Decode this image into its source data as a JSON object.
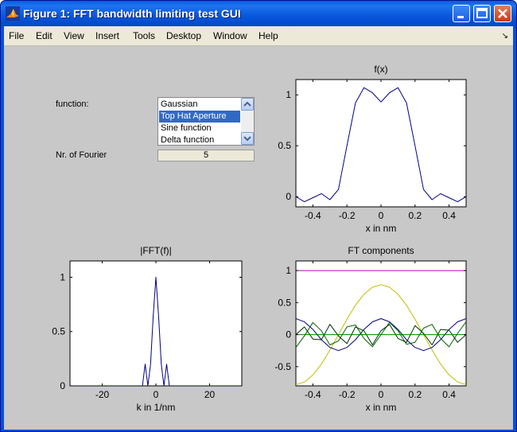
{
  "window": {
    "title": "Figure 1: FFT bandwidth limiting test GUI",
    "controls": [
      "minimize",
      "maximize",
      "close"
    ]
  },
  "menu": [
    "File",
    "Edit",
    "View",
    "Insert",
    "Tools",
    "Desktop",
    "Window",
    "Help"
  ],
  "controls": {
    "function_label": "function:",
    "function_options": [
      "Gaussian",
      "Top Hat Aperture",
      "Sine function",
      "Delta function"
    ],
    "function_selected": "Top Hat Aperture",
    "fourier_label": "Nr. of Fourier",
    "fourier_value": "5"
  },
  "icons": {
    "app": "matlab-icon",
    "scroll_up": "scroll-up-arrow-icon",
    "scroll_down": "scroll-down-arrow-icon",
    "menu_dock": "dock-arrow-icon"
  },
  "chart_data": [
    {
      "type": "line",
      "title": "f(x)",
      "xlabel": "x in nm",
      "ylabel": "",
      "xlim": [
        -0.5,
        0.5
      ],
      "ylim": [
        -0.1,
        1.15
      ],
      "xticks": [
        -0.4,
        -0.2,
        0,
        0.2,
        0.4
      ],
      "xticklabels": [
        "-0.4",
        "-0.2",
        "0",
        "0.2",
        "0.4"
      ],
      "yticks": [
        0,
        0.5,
        1
      ],
      "yticklabels": [
        "0",
        "0.5",
        "1"
      ],
      "series": [
        {
          "color": "#000080",
          "x": [
            -0.5,
            -0.45,
            -0.4,
            -0.35,
            -0.3,
            -0.25,
            -0.2,
            -0.15,
            -0.1,
            -0.05,
            0,
            0.05,
            0.1,
            0.15,
            0.2,
            0.25,
            0.3,
            0.35,
            0.4,
            0.45,
            0.5
          ],
          "values": [
            0.0,
            -0.05,
            -0.01,
            0.03,
            -0.03,
            0.07,
            0.5,
            0.92,
            1.07,
            1.02,
            0.93,
            1.02,
            1.07,
            0.92,
            0.5,
            0.07,
            -0.03,
            0.03,
            -0.01,
            -0.05,
            0.0
          ]
        }
      ]
    },
    {
      "type": "line",
      "title": "|FFT(f)|",
      "xlabel": "k in 1/nm",
      "ylabel": "",
      "xlim": [
        -32,
        32
      ],
      "ylim": [
        0,
        1.15
      ],
      "xticks": [
        -20,
        0,
        20
      ],
      "xticklabels": [
        "-20",
        "0",
        "20"
      ],
      "yticks": [
        0,
        0.5,
        1
      ],
      "yticklabels": [
        "0",
        "0.5",
        "1"
      ],
      "series": [
        {
          "color": "#000080",
          "x": [
            -32,
            -6,
            -5,
            -4,
            -3,
            -2,
            -1,
            0,
            1,
            2,
            3,
            4,
            5,
            6,
            32
          ],
          "values": [
            0,
            0,
            0.0,
            0.2,
            0.0,
            0.2,
            0.64,
            1.0,
            0.64,
            0.2,
            0.0,
            0.2,
            0.0,
            0,
            0
          ]
        }
      ]
    },
    {
      "type": "line",
      "title": "FT components",
      "xlabel": "x in nm",
      "ylabel": "",
      "xlim": [
        -0.5,
        0.5
      ],
      "ylim": [
        -0.8,
        1.15
      ],
      "xticks": [
        -0.4,
        -0.2,
        0,
        0.2,
        0.4
      ],
      "xticklabels": [
        "-0.4",
        "-0.2",
        "0",
        "0.2",
        "0.4"
      ],
      "yticks": [
        -0.5,
        0,
        0.5,
        1
      ],
      "yticklabels": [
        "-0.5",
        "0",
        "0.5",
        "1"
      ],
      "series": [
        {
          "color": "#bf00bf",
          "x": [
            -0.5,
            0.5
          ],
          "values": [
            1,
            1
          ]
        },
        {
          "color": "#bfbf00",
          "x": [
            -0.5,
            -0.45,
            -0.4,
            -0.35,
            -0.3,
            -0.25,
            -0.2,
            -0.15,
            -0.1,
            -0.05,
            0,
            0.05,
            0.1,
            0.15,
            0.2,
            0.25,
            0.3,
            0.35,
            0.4,
            0.45,
            0.5
          ],
          "values": [
            -0.78,
            -0.74,
            -0.63,
            -0.46,
            -0.24,
            0.0,
            0.24,
            0.46,
            0.63,
            0.74,
            0.78,
            0.74,
            0.63,
            0.46,
            0.24,
            0.0,
            -0.24,
            -0.46,
            -0.63,
            -0.74,
            -0.78
          ]
        },
        {
          "color": "#000080",
          "x": [
            -0.5,
            -0.45,
            -0.4,
            -0.35,
            -0.3,
            -0.25,
            -0.2,
            -0.15,
            -0.1,
            -0.05,
            0,
            0.05,
            0.1,
            0.15,
            0.2,
            0.25,
            0.3,
            0.35,
            0.4,
            0.45,
            0.5
          ],
          "values": [
            0.25,
            0.2,
            0.08,
            -0.08,
            -0.2,
            -0.25,
            -0.2,
            -0.08,
            0.08,
            0.2,
            0.25,
            0.2,
            0.08,
            -0.08,
            -0.2,
            -0.25,
            -0.2,
            -0.08,
            0.08,
            0.2,
            0.25
          ]
        },
        {
          "color": "#006400",
          "x": [
            -0.5,
            -0.45,
            -0.4,
            -0.35,
            -0.3,
            -0.25,
            -0.2,
            -0.15,
            -0.1,
            -0.05,
            0,
            0.05,
            0.1,
            0.15,
            0.2,
            0.25,
            0.3,
            0.35,
            0.4,
            0.45,
            0.5
          ],
          "values": [
            -0.2,
            -0.02,
            0.19,
            0.06,
            -0.16,
            -0.1,
            0.12,
            0.15,
            -0.06,
            -0.19,
            0.0,
            0.19,
            0.06,
            -0.15,
            -0.12,
            0.1,
            0.16,
            -0.06,
            -0.19,
            0.02,
            0.2
          ]
        },
        {
          "color": "#003000",
          "x": [
            -0.5,
            -0.45,
            -0.4,
            -0.35,
            -0.3,
            -0.25,
            -0.2,
            -0.15,
            -0.1,
            -0.05,
            0,
            0.05,
            0.1,
            0.15,
            0.2,
            0.25,
            0.3,
            0.35,
            0.4,
            0.45,
            0.5
          ],
          "values": [
            0.0,
            0.12,
            -0.07,
            -0.08,
            0.16,
            -0.02,
            -0.14,
            0.12,
            0.06,
            -0.16,
            0.06,
            0.16,
            -0.06,
            -0.12,
            0.14,
            0.02,
            -0.16,
            0.08,
            0.07,
            -0.12,
            0.0
          ]
        },
        {
          "color": "#008000",
          "x": [
            -0.5,
            0.5
          ],
          "values": [
            0.0,
            0.0
          ]
        }
      ]
    }
  ]
}
